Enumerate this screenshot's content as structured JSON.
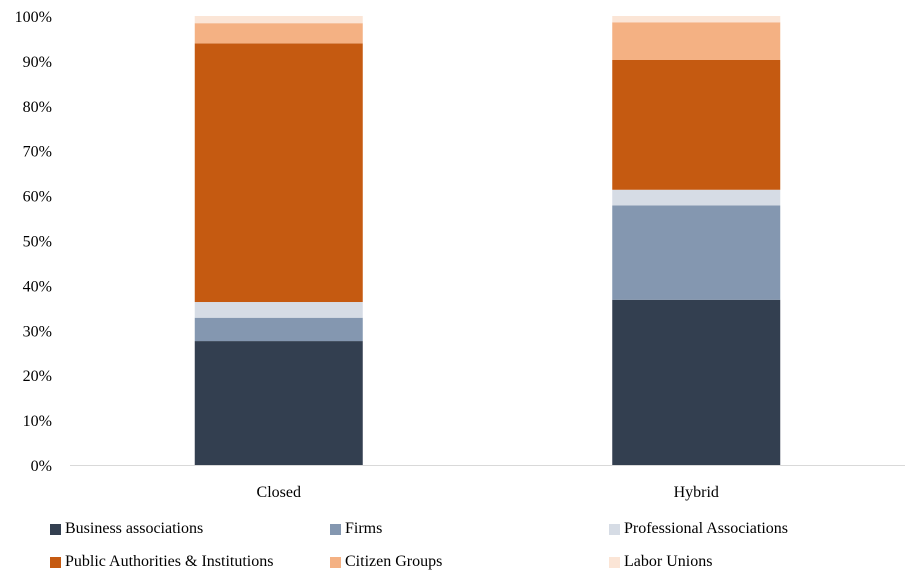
{
  "chart_data": {
    "type": "bar",
    "stacked": true,
    "percent": true,
    "categories": [
      "Closed",
      "Hybrid"
    ],
    "y_ticks": [
      "0%",
      "10%",
      "20%",
      "30%",
      "40%",
      "50%",
      "60%",
      "70%",
      "80%",
      "90%",
      "100%"
    ],
    "ylim": [
      0,
      100
    ],
    "grid": false,
    "legend_position": "bottom",
    "series": [
      {
        "name": "Business associations",
        "color": "#333f50",
        "values": [
          27.6,
          36.8
        ]
      },
      {
        "name": "Firms",
        "color": "#8497b0",
        "values": [
          5.2,
          21.0
        ]
      },
      {
        "name": "Professional Associations",
        "color": "#d6dce5",
        "values": [
          3.5,
          3.5
        ]
      },
      {
        "name": "Public Authorities & Institutions",
        "color": "#c55a11",
        "values": [
          57.6,
          28.9
        ]
      },
      {
        "name": "Citizen Groups",
        "color": "#f4b183",
        "values": [
          4.5,
          8.4
        ]
      },
      {
        "name": "Labor Unions",
        "color": "#fbe5d6",
        "values": [
          1.6,
          1.4
        ]
      }
    ]
  }
}
